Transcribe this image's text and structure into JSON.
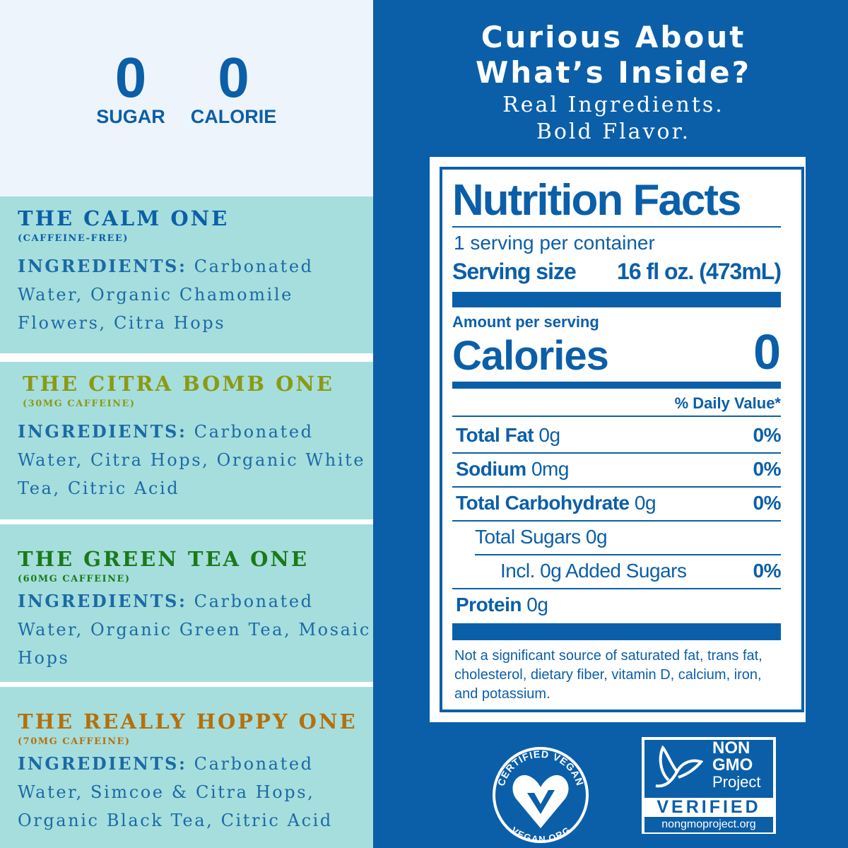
{
  "stats": [
    {
      "value": "0",
      "label": "SUGAR"
    },
    {
      "value": "0",
      "label": "CALORIE"
    }
  ],
  "flavors": [
    {
      "name": "THE CALM ONE",
      "caffeine": "(CAFFEINE-FREE)",
      "ingredients_label": "INGREDIENTS:",
      "ingredients": "Carbonated Water, Organic Chamomile Flowers, Citra Hops"
    },
    {
      "name": "THE CITRA BOMB ONE",
      "caffeine": "(30MG CAFFEINE)",
      "ingredients_label": "INGREDIENTS:",
      "ingredients": "Carbonated Water, Citra Hops, Organic White Tea, Citric Acid"
    },
    {
      "name": "THE GREEN TEA ONE",
      "caffeine": "(60MG CAFFEINE)",
      "ingredients_label": "INGREDIENTS:",
      "ingredients": "Carbonated Water, Organic Green Tea, Mosaic Hops"
    },
    {
      "name": "THE REALLY HOPPY ONE",
      "caffeine": "(70MG CAFFEINE)",
      "ingredients_label": "INGREDIENTS:",
      "ingredients": "Carbonated Water, Simcoe & Citra Hops, Organic Black Tea, Citric Acid"
    }
  ],
  "header": {
    "title": [
      "Curious About",
      "What’s Inside?"
    ],
    "subtitle": [
      "Real Ingredients.",
      "Bold Flavor."
    ]
  },
  "nutrition": {
    "title": "Nutrition Facts",
    "servings": "1 serving per container",
    "serving_size_label": "Serving size",
    "serving_size": "16 fl oz. (473mL)",
    "amount_label": "Amount per serving",
    "calories_label": "Calories",
    "calories": "0",
    "dv_header": "% Daily Value*",
    "rows": [
      {
        "name": "Total Fat",
        "amount": "0g",
        "dv": "0%"
      },
      {
        "name": "Sodium",
        "amount": "0mg",
        "dv": "0%"
      },
      {
        "name": "Total Carbohydrate",
        "amount": "0g",
        "dv": "0%"
      },
      {
        "name": "Total Sugars",
        "amount": "0g"
      },
      {
        "name": "Incl. 0g Added Sugars",
        "dv": "0%"
      },
      {
        "name": "Protein",
        "amount": "0g"
      }
    ],
    "footnote": "Not a significant source of saturated fat, trans fat, cholesterol, dietary fiber, vitamin D, calcium, iron, and potassium."
  },
  "badges": {
    "vegan": {
      "top": "CERTIFIED VEGAN",
      "bottom": "VEGAN.ORG"
    },
    "non_gmo": {
      "line1": "NON",
      "line2": "GMO",
      "line3": "Project",
      "verified": "VERIFIED",
      "url": "nongmoproject.org"
    }
  }
}
